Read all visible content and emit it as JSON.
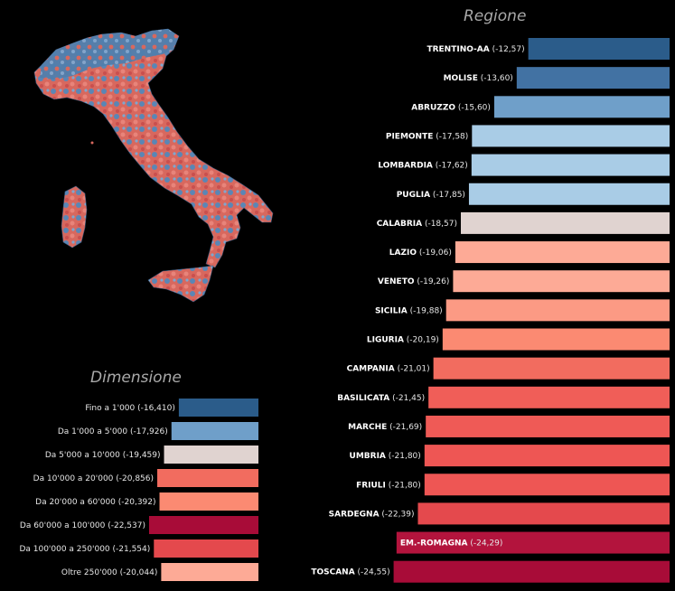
{
  "regione_title": "Regione",
  "dimensione_title": "Dimensione",
  "chart_data": [
    {
      "type": "bar",
      "orientation": "horizontal",
      "title": "Regione",
      "categories": [
        "TRENTINO-AA",
        "MOLISE",
        "ABRUZZO",
        "PIEMONTE",
        "LOMBARDIA",
        "PUGLIA",
        "CALABRIA",
        "LAZIO",
        "VENETO",
        "SICILIA",
        "LIGURIA",
        "CAMPANIA",
        "BASILICATA",
        "MARCHE",
        "UMBRIA",
        "FRIULI",
        "SARDEGNA",
        "EM.-ROMAGNA",
        "TOSCANA"
      ],
      "value_labels": [
        "(-12,57)",
        "(-13,60)",
        "(-15,60)",
        "(-17,58)",
        "(-17,62)",
        "(-17,85)",
        "(-18,57)",
        "(-19,06)",
        "(-19,26)",
        "(-19,88)",
        "(-20,19)",
        "(-21,01)",
        "(-21,45)",
        "(-21,69)",
        "(-21,80)",
        "(-21,80)",
        "(-22,39)",
        "(-24,29)",
        "(-24,55)"
      ],
      "values": [
        -12.57,
        -13.6,
        -15.6,
        -17.58,
        -17.62,
        -17.85,
        -18.57,
        -19.06,
        -19.26,
        -19.88,
        -20.19,
        -21.01,
        -21.45,
        -21.69,
        -21.8,
        -21.8,
        -22.39,
        -24.29,
        -24.55
      ],
      "colors": [
        "#2b5c8a",
        "#4272a3",
        "#6f9fc9",
        "#a9cce6",
        "#a9cce6",
        "#a9cce6",
        "#e0d3d0",
        "#fdaa96",
        "#fdaa96",
        "#fc9a84",
        "#fb8a72",
        "#f26c5f",
        "#f05e58",
        "#ef5a56",
        "#ee5654",
        "#ee5654",
        "#e4494d",
        "#b3143d",
        "#a80c38"
      ],
      "label_inside_index": 17
    },
    {
      "type": "bar",
      "orientation": "horizontal",
      "title": "Dimensione",
      "categories": [
        "Fino a 1'000",
        "Da 1'000 a 5'000",
        "Da 5'000 a 10'000",
        "Da 10'000 a 20'000",
        "Da 20'000 a 60'000",
        "Da 60'000 a 100'000",
        "Da 100'000 a 250'000",
        "Oltre 250'000"
      ],
      "value_labels": [
        "(-16,410)",
        "(-17,926)",
        "(-19,459)",
        "(-20,856)",
        "(-20,392)",
        "(-22,537)",
        "(-21,554)",
        "(-20,044)"
      ],
      "values": [
        -16.41,
        -17.926,
        -19.459,
        -20.856,
        -20.392,
        -22.537,
        -21.554,
        -20.044
      ],
      "colors": [
        "#2b5c8a",
        "#6f9fc9",
        "#e0d3d0",
        "#f26c5f",
        "#fb8a72",
        "#a80c38",
        "#e4494d",
        "#fdaa96"
      ]
    }
  ]
}
